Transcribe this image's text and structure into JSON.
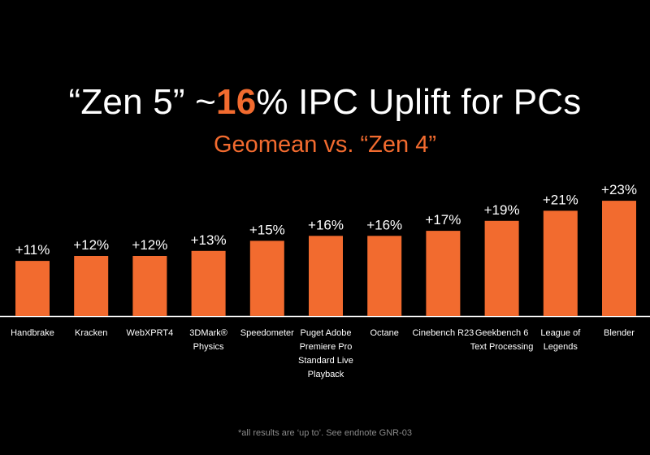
{
  "header": {
    "title_prefix": "“Zen 5” ~",
    "title_accent": "16",
    "title_suffix": "% IPC Uplift for PCs",
    "subtitle": "Geomean  vs. “Zen 4”"
  },
  "colors": {
    "accent": "#F26B2F",
    "background": "#000000",
    "text": "#FFFFFF",
    "footnote": "#8A8A8A"
  },
  "chart_data": {
    "type": "bar",
    "title": "“Zen 5” ~16% IPC Uplift for PCs",
    "subtitle": "Geomean  vs. “Zen 4”",
    "categories": [
      "Handbrake",
      "Kracken",
      "WebXPRT4",
      "3DMark® Physics",
      "Speedometer",
      "Puget Adobe Premiere Pro Standard Live Playback",
      "Octane",
      "Cinebench R23",
      "Geekbench 6 Text Processing",
      "League of Legends",
      "Blender"
    ],
    "category_lines": [
      "Handbrake",
      "Kracken",
      "WebXPRT4",
      "3DMark®\nPhysics",
      "Speedometer",
      "Puget Adobe\nPremiere Pro\nStandard Live\nPlayback",
      "Octane",
      "Cinebench R23",
      "Geekbench 6\nText Processing",
      "League of\nLegends",
      "Blender"
    ],
    "values": [
      11,
      12,
      12,
      13,
      15,
      16,
      16,
      17,
      19,
      21,
      23
    ],
    "data_labels": [
      "+11%",
      "+12%",
      "+12%",
      "+13%",
      "+15%",
      "+16%",
      "+16%",
      "+17%",
      "+19%",
      "+21%",
      "+23%"
    ],
    "ylim": [
      0,
      25
    ],
    "xlabel": "",
    "ylabel": "",
    "grid": false,
    "legend": "none"
  },
  "footnote": "*all results are ‘up to’. See endnote GNR-03"
}
